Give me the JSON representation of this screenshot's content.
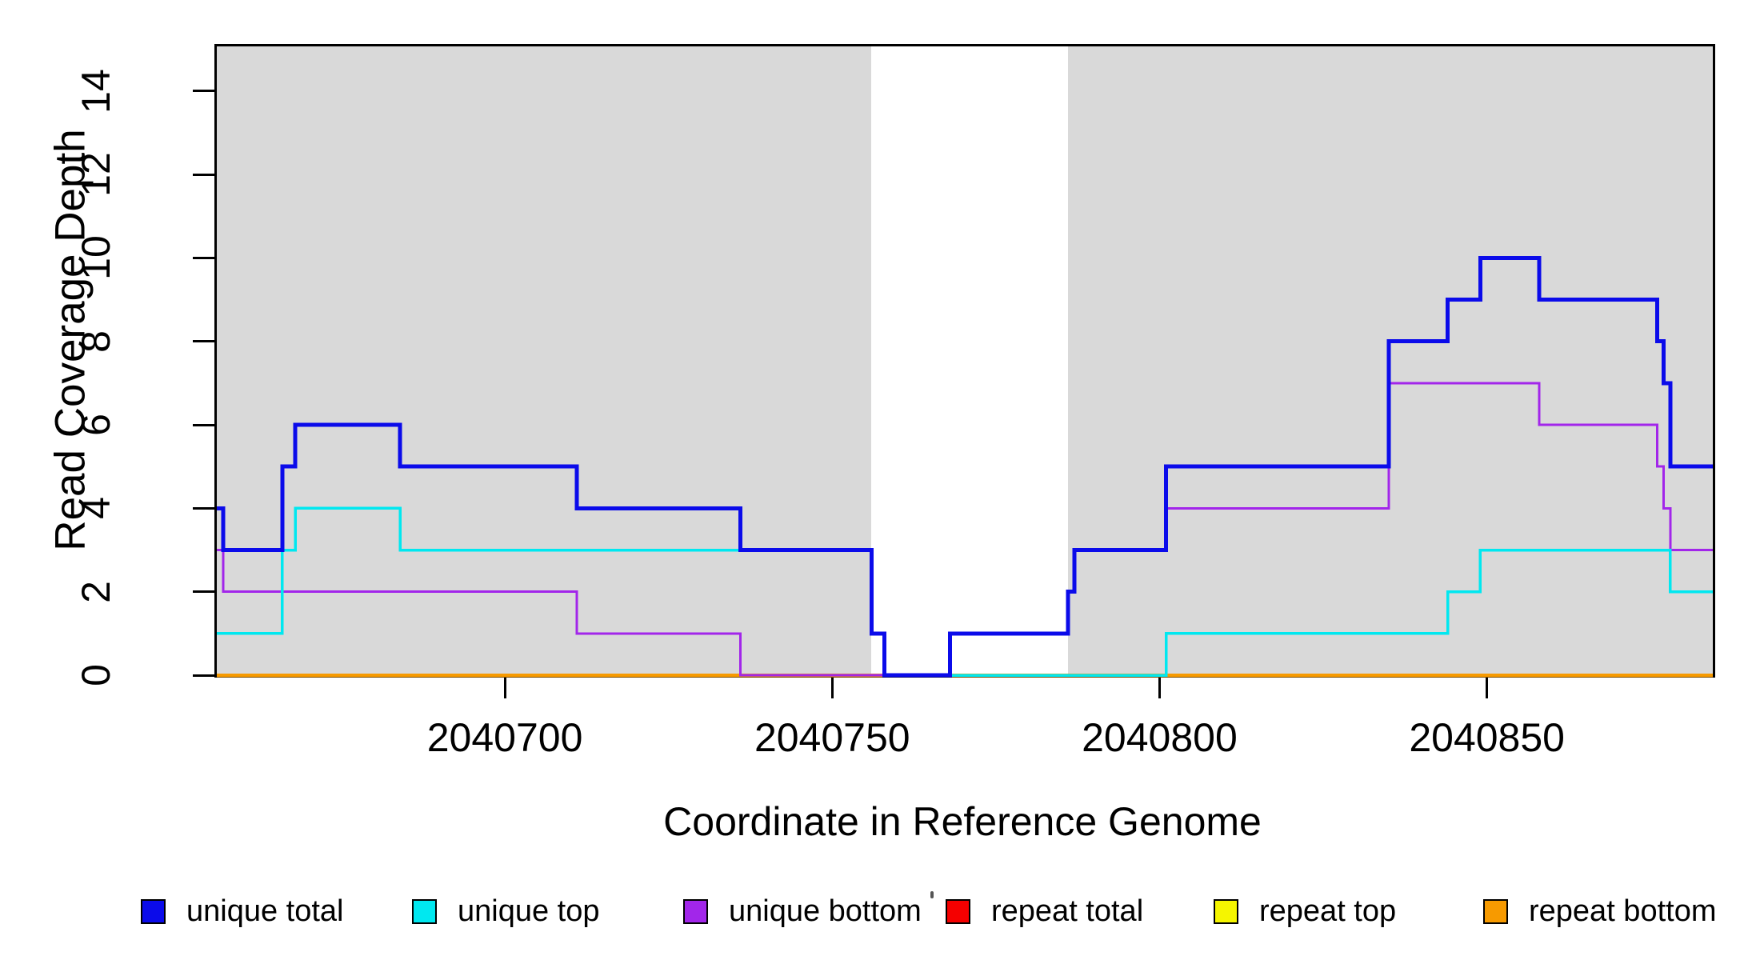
{
  "chart_data": {
    "type": "line",
    "step": true,
    "title": "",
    "xlabel": "Coordinate in Reference Genome",
    "ylabel": "Read Coverage Depth",
    "xlim": [
      2040656,
      2040884.5
    ],
    "ylim": [
      0,
      15.07
    ],
    "x_ticks": [
      2040700,
      2040750,
      2040800,
      2040850
    ],
    "y_ticks": [
      0,
      2,
      4,
      6,
      8,
      10,
      12,
      14
    ],
    "grid": false,
    "legend_position": "bottom",
    "shade_color": "#d9d9d9",
    "shaded_regions": [
      [
        2040656,
        2040756
      ],
      [
        2040786,
        2040884.5
      ]
    ],
    "x_breakpoints": [
      2040656,
      2040657,
      2040666,
      2040668,
      2040684,
      2040711,
      2040736,
      2040756,
      2040758,
      2040768,
      2040786,
      2040787,
      2040801,
      2040835,
      2040844,
      2040849,
      2040858,
      2040876,
      2040877,
      2040878
    ],
    "x_end": 2040884.5,
    "series": [
      {
        "name": "unique total",
        "color": "#0b0bea",
        "line_width": 5,
        "values": [
          4,
          3,
          5,
          6,
          5,
          4,
          3,
          1,
          0,
          1,
          2,
          3,
          5,
          8,
          9,
          10,
          9,
          8,
          7,
          5
        ]
      },
      {
        "name": "unique top",
        "color": "#00e8f0",
        "line_width": 3.5,
        "values": [
          1,
          1,
          3,
          4,
          3,
          3,
          3,
          1,
          0,
          0,
          0,
          0,
          1,
          1,
          2,
          3,
          3,
          3,
          3,
          2
        ]
      },
      {
        "name": "unique bottom",
        "color": "#a226ea",
        "line_width": 3,
        "values": [
          3,
          2,
          2,
          2,
          2,
          1,
          0,
          0,
          0,
          1,
          2,
          3,
          4,
          7,
          7,
          7,
          6,
          5,
          4,
          3
        ]
      },
      {
        "name": "repeat total",
        "color": "#f50000",
        "line_width": 3,
        "values": [
          0,
          0,
          0,
          0,
          0,
          0,
          0,
          0,
          0,
          0,
          0,
          0,
          0,
          0,
          0,
          0,
          0,
          0,
          0,
          0
        ]
      },
      {
        "name": "repeat top",
        "color": "#f5f500",
        "line_width": 3,
        "values": [
          0,
          0,
          0,
          0,
          0,
          0,
          0,
          0,
          0,
          0,
          0,
          0,
          0,
          0,
          0,
          0,
          0,
          0,
          0,
          0
        ]
      },
      {
        "name": "repeat bottom",
        "color": "#f79a00",
        "line_width": 4.5,
        "values": [
          0,
          0,
          0,
          0,
          0,
          0,
          0,
          0,
          0,
          0,
          0,
          0,
          0,
          0,
          0,
          0,
          0,
          0,
          0,
          0
        ]
      }
    ],
    "draw_order": [
      "repeat total",
      "repeat top",
      "repeat bottom",
      "unique bottom",
      "unique top",
      "unique total"
    ]
  },
  "legend": {
    "items": [
      {
        "label": "unique total",
        "color": "#0b0bea"
      },
      {
        "label": "unique top",
        "color": "#00e8f0"
      },
      {
        "label": "unique bottom",
        "color": "#a226ea"
      },
      {
        "label": "repeat total",
        "color": "#f50000"
      },
      {
        "label": "repeat top",
        "color": "#f5f500"
      },
      {
        "label": "repeat bottom",
        "color": "#f79a00"
      }
    ]
  }
}
